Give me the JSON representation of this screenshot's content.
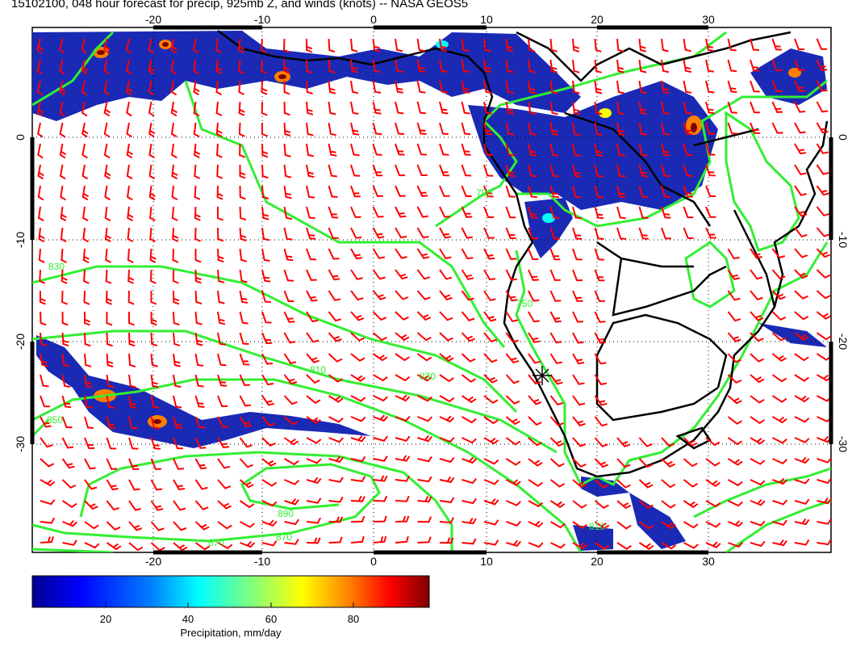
{
  "title": "15102100, 048 hour forecast for precip, 925mb Z, and winds (knots) -- NASA GEOS5",
  "map": {
    "lon_ticks": [
      "-20",
      "-10",
      "0",
      "10",
      "20",
      "30"
    ],
    "lat_ticks": [
      "0",
      "-10",
      "-20",
      "-30"
    ],
    "contour_labels": [
      "830",
      "850",
      "870",
      "890",
      "810",
      "790",
      "750",
      "830",
      "870",
      "810"
    ],
    "colors": {
      "wind_barbs": "#ff0000",
      "contours": "#33ee33",
      "coastlines": "#000000"
    }
  },
  "colorbar": {
    "ticks": [
      "20",
      "40",
      "60",
      "80"
    ],
    "label": "Precipitation, mm/day",
    "colormap": [
      "#00008f",
      "#0000ff",
      "#007fff",
      "#00ffff",
      "#7fff7f",
      "#ffff00",
      "#ff7f00",
      "#ff0000",
      "#7f0000"
    ]
  }
}
